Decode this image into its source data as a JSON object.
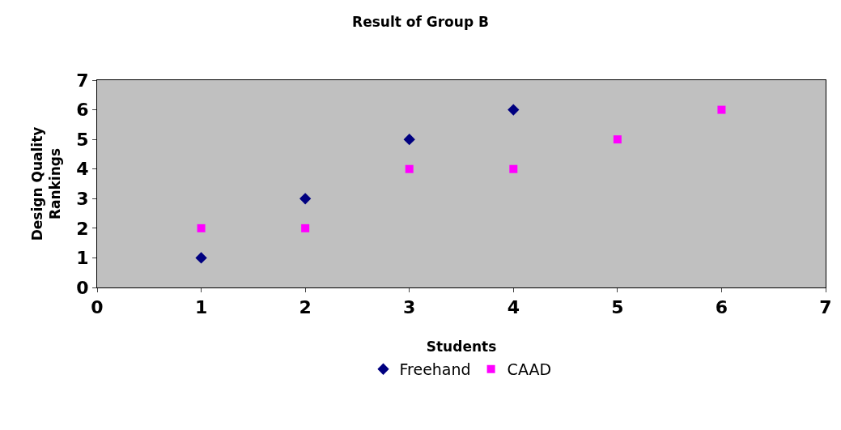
{
  "chart_data": {
    "type": "scatter",
    "title": "Result of Group B",
    "xlabel": "Students",
    "ylabel": "Design Quality Rankings",
    "xlim": [
      0,
      7
    ],
    "xticks": [
      0,
      1,
      2,
      3,
      4,
      5,
      6,
      7
    ],
    "ylim": [
      0,
      7
    ],
    "yticks": [
      0,
      1,
      2,
      3,
      4,
      5,
      6,
      7
    ],
    "grid": false,
    "legend": "bottom",
    "series": [
      {
        "name": "Freehand",
        "color": "#000080",
        "marker": "diamond",
        "x": [
          1,
          2,
          3,
          4
        ],
        "values": [
          1,
          3,
          5,
          6
        ]
      },
      {
        "name": "CAAD",
        "color": "#ff00ff",
        "marker": "square",
        "x": [
          1,
          2,
          3,
          4,
          5,
          6
        ],
        "values": [
          2,
          2,
          4,
          4,
          5,
          6
        ]
      }
    ]
  }
}
